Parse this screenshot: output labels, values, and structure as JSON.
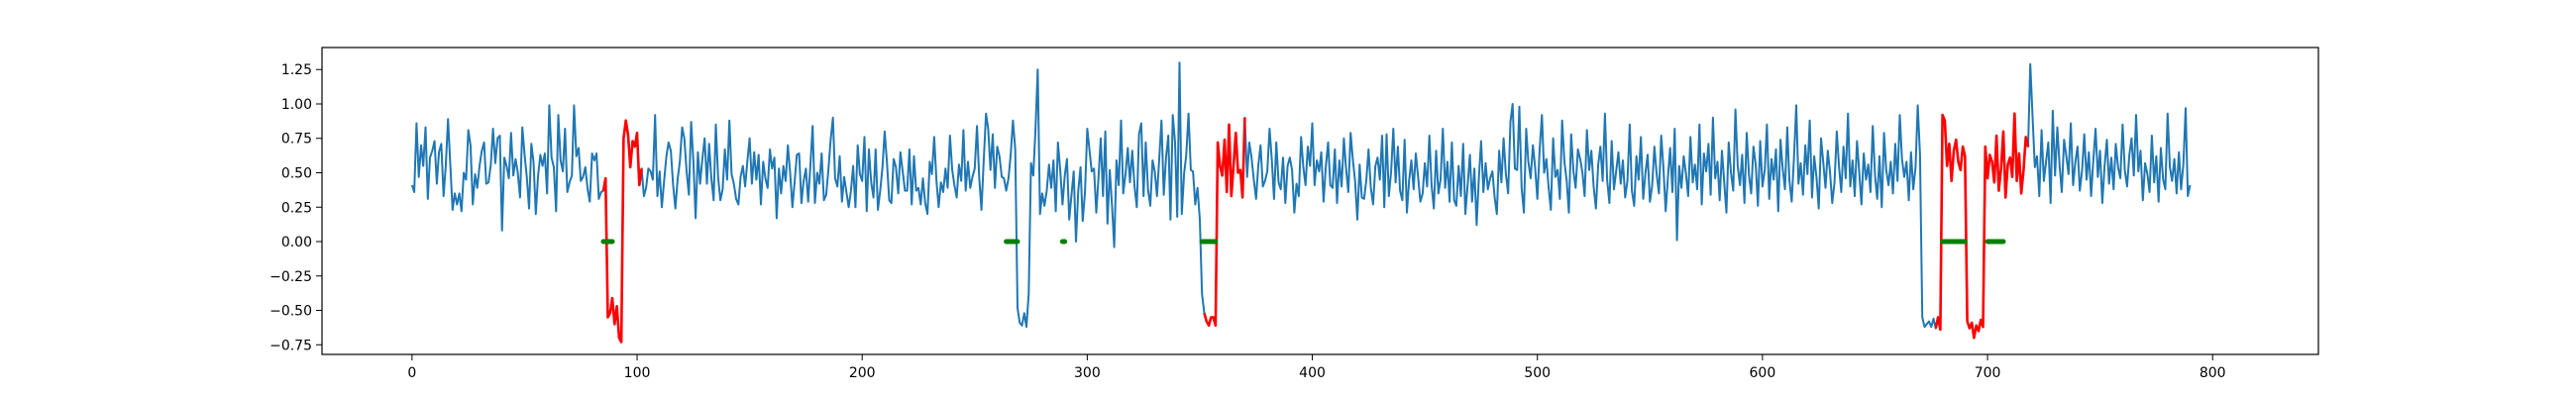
{
  "chart_data": {
    "type": "line",
    "title": "",
    "xlabel": "",
    "ylabel": "",
    "xlim": [
      -40,
      847
    ],
    "ylim": [
      -0.82,
      1.41
    ],
    "grid": false,
    "legend": "none",
    "x_ticks": [
      0,
      100,
      200,
      300,
      400,
      500,
      600,
      700,
      800
    ],
    "x_tick_labels": [
      "0",
      "100",
      "200",
      "300",
      "400",
      "500",
      "600",
      "700",
      "800"
    ],
    "y_ticks": [
      -0.75,
      -0.5,
      -0.25,
      0.0,
      0.25,
      0.5,
      0.75,
      1.0,
      1.25
    ],
    "y_tick_labels": [
      "−0.75",
      "−0.50",
      "−0.25",
      "0.00",
      "0.25",
      "0.50",
      "0.75",
      "1.00",
      "1.25"
    ],
    "series": [
      {
        "role": "signal",
        "color": "#1f77b4",
        "x_start": 0,
        "values": [
          0.41,
          0.36,
          0.86,
          0.47,
          0.7,
          0.55,
          0.83,
          0.31,
          0.61,
          0.66,
          0.73,
          0.42,
          0.65,
          0.71,
          0.33,
          0.55,
          0.89,
          0.56,
          0.23,
          0.35,
          0.27,
          0.35,
          0.22,
          0.5,
          0.45,
          0.81,
          0.7,
          0.27,
          0.49,
          0.39,
          0.55,
          0.66,
          0.72,
          0.42,
          0.43,
          0.56,
          0.82,
          0.57,
          0.75,
          0.77,
          0.08,
          0.61,
          0.55,
          0.46,
          0.79,
          0.48,
          0.6,
          0.5,
          0.32,
          0.83,
          0.63,
          0.47,
          0.24,
          0.71,
          0.58,
          0.2,
          0.48,
          0.63,
          0.55,
          0.64,
          0.35,
          0.99,
          0.61,
          0.54,
          0.22,
          0.92,
          0.59,
          0.51,
          0.82,
          0.36,
          0.43,
          0.48,
          0.99,
          0.62,
          0.68,
          0.44,
          0.47,
          0.54,
          0.38,
          0.29,
          0.64,
          0.59,
          0.64,
          0.31,
          0.36,
          0.37,
          0.46,
          -0.55,
          -0.52,
          -0.41,
          -0.6,
          -0.47,
          -0.7,
          -0.73,
          0.75,
          0.88,
          0.77,
          0.54,
          0.73,
          0.69,
          0.79,
          0.41,
          0.53,
          0.33,
          0.39,
          0.53,
          0.51,
          0.45,
          0.92,
          0.33,
          0.51,
          0.25,
          0.44,
          0.62,
          0.72,
          0.66,
          0.41,
          0.24,
          0.45,
          0.58,
          0.83,
          0.75,
          0.51,
          0.34,
          0.87,
          0.59,
          0.17,
          0.65,
          0.42,
          0.6,
          0.75,
          0.42,
          0.71,
          0.46,
          0.3,
          0.85,
          0.47,
          0.3,
          0.38,
          0.67,
          0.45,
          0.88,
          0.49,
          0.42,
          0.31,
          0.27,
          0.47,
          0.55,
          0.4,
          0.59,
          0.75,
          0.42,
          0.65,
          0.45,
          0.63,
          0.27,
          0.58,
          0.46,
          0.39,
          0.67,
          0.53,
          0.61,
          0.17,
          0.53,
          0.35,
          0.55,
          0.44,
          0.7,
          0.5,
          0.25,
          0.44,
          0.63,
          0.64,
          0.28,
          0.44,
          0.53,
          0.29,
          0.56,
          0.84,
          0.28,
          0.5,
          0.42,
          0.64,
          0.3,
          0.34,
          0.52,
          0.74,
          0.9,
          0.46,
          0.4,
          0.62,
          0.29,
          0.47,
          0.36,
          0.25,
          0.37,
          0.55,
          0.25,
          0.7,
          0.49,
          0.44,
          0.76,
          0.22,
          0.67,
          0.43,
          0.32,
          0.67,
          0.23,
          0.37,
          0.54,
          0.8,
          0.58,
          0.3,
          0.28,
          0.6,
          0.54,
          0.35,
          0.65,
          0.51,
          0.37,
          0.37,
          0.67,
          0.27,
          0.62,
          0.37,
          0.39,
          0.27,
          0.46,
          0.28,
          0.2,
          0.58,
          0.49,
          0.76,
          0.44,
          0.25,
          0.43,
          0.36,
          0.53,
          0.39,
          0.77,
          0.52,
          0.41,
          0.32,
          0.56,
          0.44,
          0.81,
          0.37,
          0.58,
          0.39,
          0.47,
          0.53,
          0.84,
          0.47,
          0.23,
          0.59,
          0.93,
          0.82,
          0.52,
          0.78,
          0.39,
          0.69,
          0.62,
          0.47,
          0.46,
          0.37,
          0.46,
          0.63,
          0.88,
          0.67,
          -0.48,
          -0.59,
          -0.61,
          -0.52,
          -0.62,
          -0.38,
          0.57,
          0.48,
          0.81,
          1.25,
          0.2,
          0.35,
          0.26,
          0.37,
          0.56,
          0.39,
          0.59,
          0.22,
          0.72,
          0.52,
          0.27,
          0.48,
          0.6,
          0.16,
          0.34,
          0.51,
          0.0,
          0.37,
          0.54,
          0.15,
          0.36,
          0.82,
          0.66,
          0.51,
          0.53,
          0.21,
          0.46,
          0.75,
          0.33,
          0.8,
          0.13,
          0.52,
          0.26,
          -0.04,
          0.59,
          0.41,
          0.88,
          0.35,
          0.49,
          0.68,
          0.43,
          0.66,
          0.4,
          0.25,
          0.78,
          0.86,
          0.33,
          0.72,
          0.38,
          0.26,
          0.59,
          0.51,
          0.33,
          0.61,
          0.88,
          0.34,
          0.61,
          0.77,
          0.16,
          0.92,
          0.72,
          0.18,
          1.3,
          0.2,
          0.49,
          0.63,
          0.93,
          0.52,
          0.51,
          0.27,
          0.39,
          0.16,
          -0.38,
          -0.52,
          -0.58,
          -0.61,
          -0.55,
          -0.55,
          -0.61,
          0.72,
          0.55,
          0.48,
          0.74,
          0.36,
          0.85,
          0.33,
          0.55,
          0.79,
          0.5,
          0.52,
          0.32,
          0.9,
          0.47,
          0.72,
          0.61,
          0.45,
          0.31,
          0.55,
          0.7,
          0.4,
          0.44,
          0.51,
          0.82,
          0.59,
          0.31,
          0.72,
          0.43,
          0.38,
          0.61,
          0.28,
          0.55,
          0.61,
          0.52,
          0.21,
          0.42,
          0.33,
          0.76,
          0.54,
          0.41,
          0.69,
          0.55,
          0.86,
          0.41,
          0.59,
          0.51,
          0.65,
          0.29,
          0.55,
          0.72,
          0.41,
          0.39,
          0.67,
          0.28,
          0.59,
          0.4,
          0.75,
          0.53,
          0.36,
          0.79,
          0.6,
          0.44,
          0.16,
          0.56,
          0.32,
          0.31,
          0.45,
          0.67,
          0.39,
          0.27,
          0.55,
          0.61,
          0.45,
          0.77,
          0.25,
          0.78,
          0.33,
          0.51,
          0.82,
          0.43,
          0.69,
          0.37,
          0.3,
          0.74,
          0.21,
          0.44,
          0.59,
          0.38,
          0.64,
          0.47,
          0.29,
          0.35,
          0.57,
          0.4,
          0.77,
          0.41,
          0.24,
          0.66,
          0.35,
          0.45,
          0.82,
          0.39,
          0.58,
          0.29,
          0.72,
          0.3,
          0.26,
          0.55,
          0.33,
          0.71,
          0.2,
          0.41,
          0.63,
          0.29,
          0.53,
          0.12,
          0.47,
          0.73,
          0.36,
          0.57,
          0.38,
          0.46,
          0.51,
          0.32,
          0.2,
          0.66,
          0.43,
          0.75,
          0.49,
          0.35,
          0.87,
          1.0,
          0.53,
          0.52,
          0.98,
          0.39,
          0.21,
          0.82,
          0.58,
          0.46,
          0.7,
          0.54,
          0.31,
          0.67,
          0.92,
          0.5,
          0.6,
          0.39,
          0.23,
          0.75,
          0.47,
          0.52,
          0.31,
          0.88,
          0.58,
          0.44,
          0.21,
          0.78,
          0.51,
          0.39,
          0.67,
          0.6,
          0.5,
          0.33,
          0.81,
          0.52,
          0.66,
          0.4,
          0.24,
          0.56,
          0.69,
          0.44,
          0.93,
          0.45,
          0.28,
          0.73,
          0.38,
          0.51,
          0.65,
          0.42,
          0.59,
          0.32,
          0.44,
          0.85,
          0.37,
          0.26,
          0.62,
          0.45,
          0.76,
          0.31,
          0.5,
          0.63,
          0.29,
          0.41,
          0.69,
          0.49,
          0.35,
          0.77,
          0.54,
          0.22,
          0.47,
          0.68,
          0.36,
          0.82,
          0.01,
          0.55,
          0.39,
          0.62,
          0.49,
          0.33,
          0.76,
          0.43,
          0.56,
          0.38,
          0.85,
          0.27,
          0.64,
          0.51,
          0.71,
          0.34,
          0.9,
          0.46,
          0.58,
          0.3,
          0.66,
          0.43,
          0.21,
          0.72,
          0.5,
          0.37,
          0.96,
          0.55,
          0.41,
          0.63,
          0.28,
          0.79,
          0.48,
          0.35,
          0.69,
          0.56,
          0.26,
          0.73,
          0.4,
          0.52,
          0.85,
          0.31,
          0.6,
          0.45,
          0.67,
          0.22,
          0.74,
          0.53,
          0.38,
          0.83,
          0.44,
          0.29,
          0.61,
          0.99,
          0.42,
          0.57,
          0.34,
          0.7,
          0.49,
          0.88,
          0.32,
          0.62,
          0.47,
          0.24,
          0.75,
          0.58,
          0.39,
          0.66,
          0.51,
          0.28,
          0.43,
          0.8,
          0.55,
          0.36,
          0.69,
          0.46,
          0.93,
          0.4,
          0.59,
          0.33,
          0.73,
          0.5,
          0.27,
          0.64,
          0.45,
          0.56,
          0.36,
          0.84,
          0.48,
          0.31,
          0.62,
          0.25,
          0.79,
          0.52,
          0.41,
          0.58,
          0.35,
          0.71,
          0.44,
          0.92,
          0.6,
          0.47,
          0.58,
          0.3,
          0.65,
          0.38,
          0.54,
          0.99,
          0.63,
          -0.55,
          -0.62,
          -0.6,
          -0.58,
          -0.62,
          -0.56,
          -0.63,
          -0.55,
          -0.64,
          0.92,
          0.88,
          0.55,
          0.71,
          0.44,
          0.66,
          0.74,
          0.58,
          0.52,
          0.69,
          0.62,
          -0.58,
          -0.63,
          -0.59,
          -0.7,
          -0.61,
          -0.65,
          -0.57,
          -0.62,
          0.69,
          0.46,
          0.63,
          0.58,
          0.43,
          0.77,
          0.37,
          0.53,
          0.8,
          0.32,
          0.56,
          0.61,
          0.47,
          0.93,
          0.44,
          0.64,
          0.35,
          0.52,
          0.76,
          0.69,
          1.29,
          0.91,
          0.54,
          0.62,
          0.33,
          0.81,
          0.44,
          0.58,
          0.72,
          0.28,
          0.95,
          0.48,
          0.83,
          0.55,
          0.36,
          0.74,
          0.62,
          0.49,
          0.86,
          0.41,
          0.58,
          0.69,
          0.37,
          0.52,
          0.78,
          0.45,
          0.65,
          0.33,
          0.59,
          0.82,
          0.47,
          0.66,
          0.28,
          0.55,
          0.74,
          0.42,
          0.61,
          0.38,
          0.71,
          0.54,
          0.46,
          0.85,
          0.52,
          0.4,
          0.63,
          0.75,
          0.48,
          0.92,
          0.51,
          0.66,
          0.3,
          0.57,
          0.49,
          0.36,
          0.77,
          0.43,
          0.62,
          0.29,
          0.68,
          0.45,
          0.38,
          0.93,
          0.54,
          0.44,
          0.6,
          0.35,
          0.65,
          0.38,
          0.56,
          0.97,
          0.33,
          0.41
        ]
      },
      {
        "role": "highlighted",
        "color": "#ff0000",
        "segments": [
          [
            85,
            102
          ],
          [
            352,
            370
          ],
          [
            677,
            718
          ]
        ]
      },
      {
        "role": "zero-marker",
        "color": "#008000",
        "segments": [
          [
            85,
            89
          ],
          [
            264,
            269
          ],
          [
            289,
            290
          ],
          [
            351,
            357
          ],
          [
            680,
            690
          ],
          [
            700,
            707
          ]
        ]
      }
    ]
  }
}
